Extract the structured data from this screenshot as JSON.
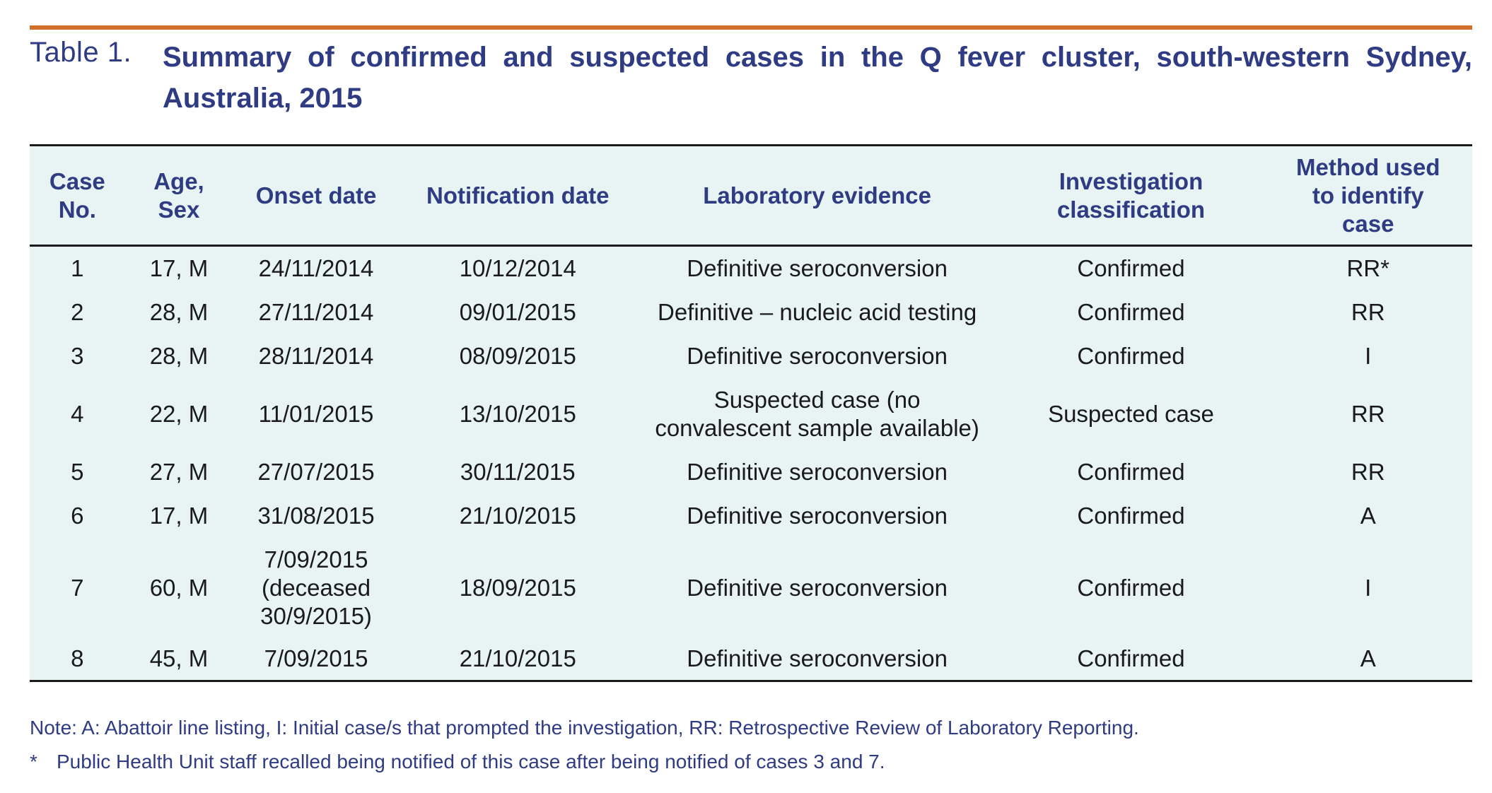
{
  "caption": {
    "label": "Table 1.",
    "title": "Summary of confirmed and suspected cases in the Q fever cluster, south-western Sydney, Australia, 2015"
  },
  "colors": {
    "accent_rule": "#d0702a",
    "heading_text": "#2f3b82",
    "table_background": "#e7f4f3",
    "body_text": "#1a1a1a"
  },
  "table": {
    "headers": [
      "Case No.",
      "Age, Sex",
      "Onset date",
      "Notification date",
      "Laboratory evidence",
      "Investigation classification",
      "Method used to identify case"
    ],
    "rows": [
      [
        "1",
        "17, M",
        "24/11/2014",
        "10/12/2014",
        "Definitive seroconversion",
        "Confirmed",
        "RR*"
      ],
      [
        "2",
        "28, M",
        "27/11/2014",
        "09/01/2015",
        "Definitive – nucleic acid testing",
        "Confirmed",
        "RR"
      ],
      [
        "3",
        "28, M",
        "28/11/2014",
        "08/09/2015",
        "Definitive seroconversion",
        "Confirmed",
        "I"
      ],
      [
        "4",
        "22, M",
        "11/01/2015",
        "13/10/2015",
        "Suspected case (no convalescent sample available)",
        "Suspected case",
        "RR"
      ],
      [
        "5",
        "27, M",
        "27/07/2015",
        "30/11/2015",
        "Definitive seroconversion",
        "Confirmed",
        "RR"
      ],
      [
        "6",
        "17, M",
        "31/08/2015",
        "21/10/2015",
        "Definitive seroconversion",
        "Confirmed",
        "A"
      ],
      [
        "7",
        "60, M",
        "7/09/2015 (deceased 30/9/2015)",
        "18/09/2015",
        "Definitive seroconversion",
        "Confirmed",
        "I"
      ],
      [
        "8",
        "45, M",
        "7/09/2015",
        "21/10/2015",
        "Definitive seroconversion",
        "Confirmed",
        "A"
      ]
    ]
  },
  "notes": {
    "legend": "Note: A: Abattoir line listing, I: Initial case/s that prompted the investigation, RR: Retrospective Review of Laboratory Reporting.",
    "footnote_marker": "*",
    "footnote": "Public Health Unit staff recalled being notified of this case after being notified of cases 3 and 7."
  }
}
